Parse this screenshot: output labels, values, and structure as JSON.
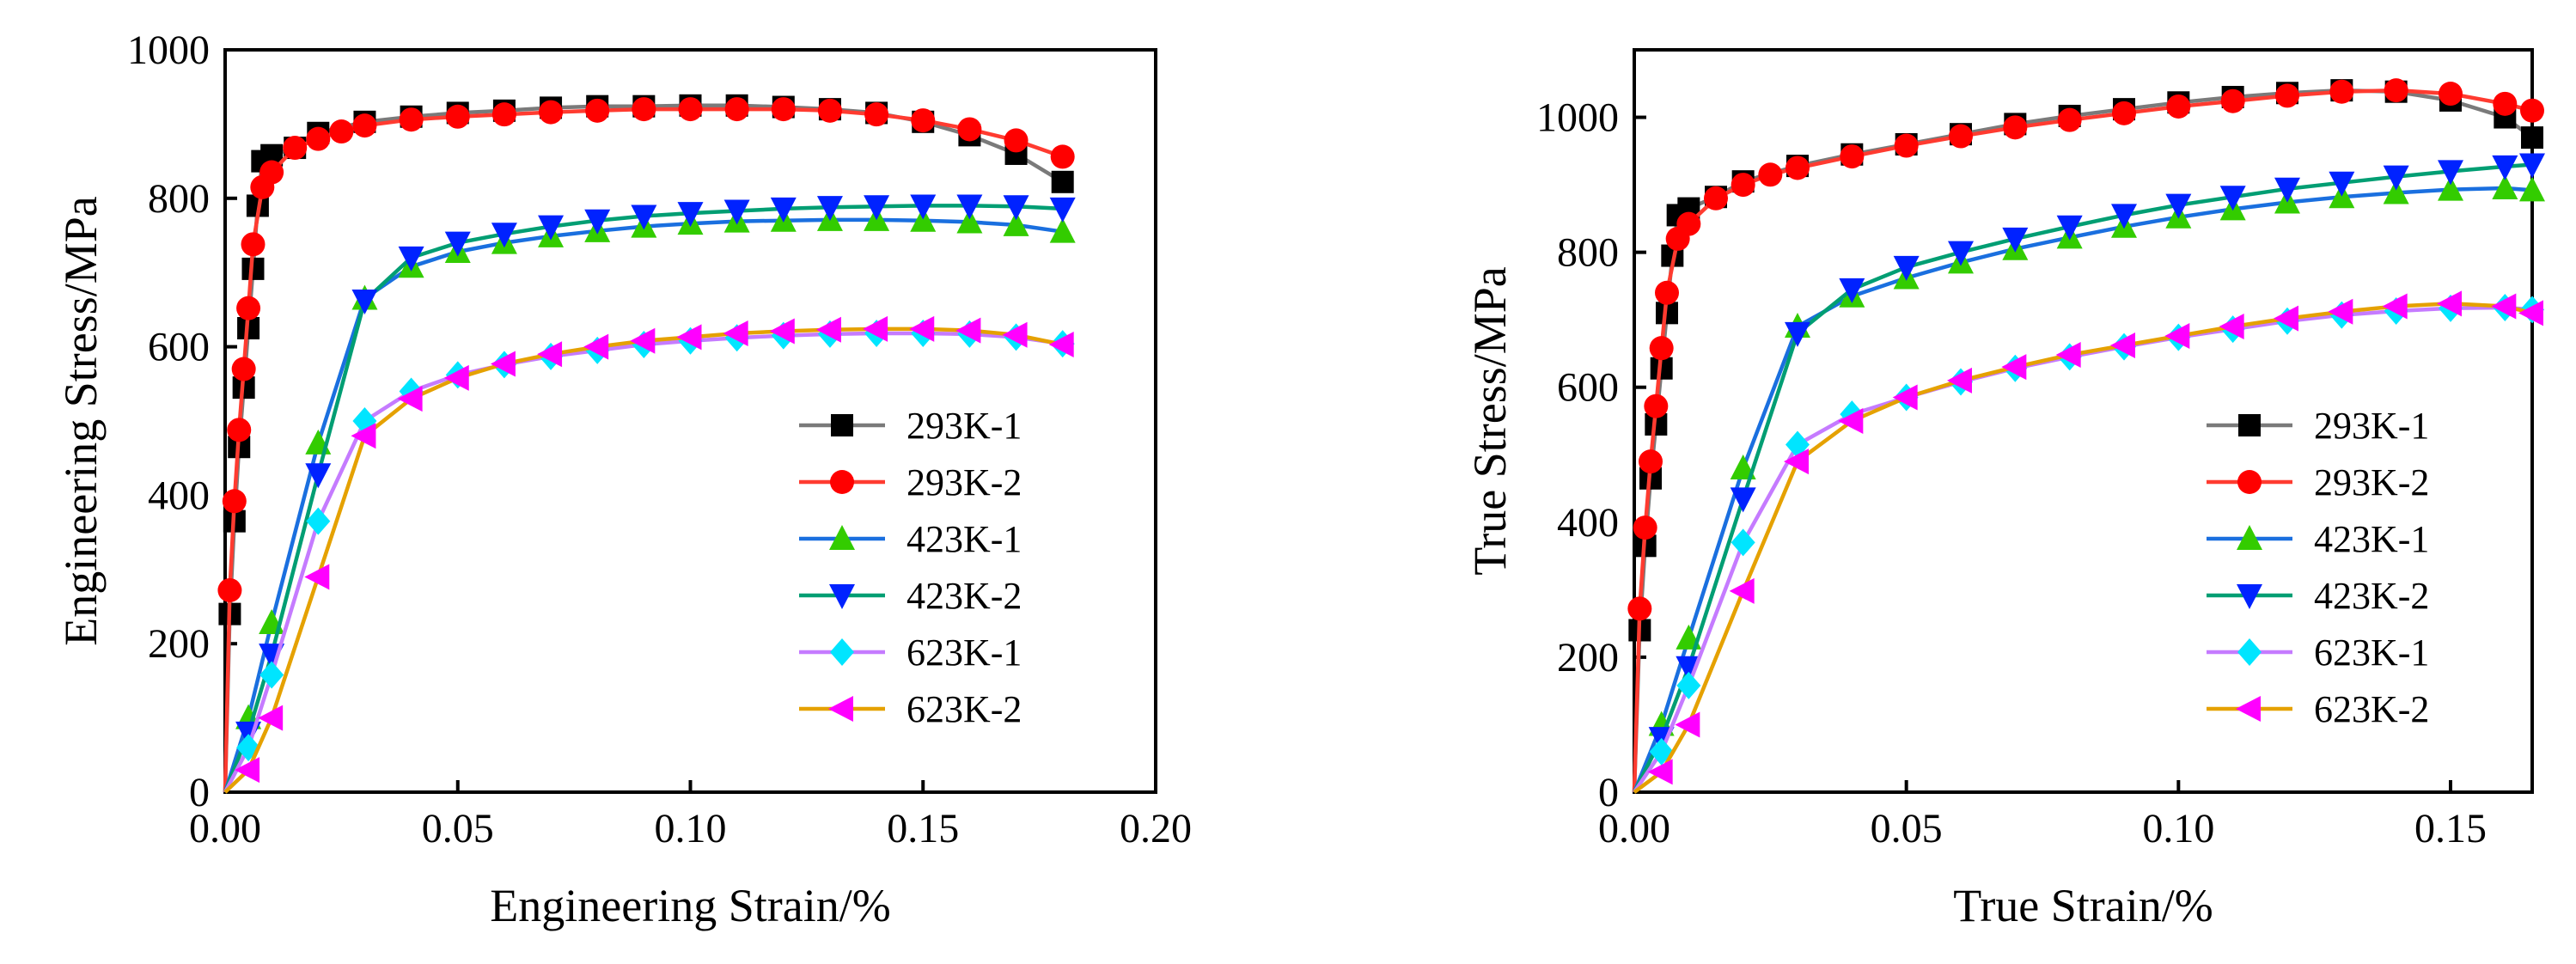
{
  "chart_data": [
    {
      "type": "line",
      "xlabel": "Engineering Strain/%",
      "ylabel": "Engineering Stress/MPa",
      "xlim": [
        0,
        0.2
      ],
      "ylim": [
        0,
        1000
      ],
      "xticks": [
        0,
        0.05,
        0.1,
        0.15,
        0.2
      ],
      "xtick_labels": [
        "0.00",
        "0.05",
        "0.10",
        "0.15",
        "0.20"
      ],
      "yticks": [
        0,
        200,
        400,
        600,
        800,
        1000
      ],
      "ytick_labels": [
        "0",
        "200",
        "400",
        "600",
        "800",
        "1000"
      ],
      "legend_position": "bottom-right",
      "series": [
        {
          "name": "293K-1",
          "color": "#7a7a7a",
          "marker_color": "#000000",
          "marker": "square",
          "x": [
            0,
            0.001,
            0.002,
            0.003,
            0.004,
            0.005,
            0.006,
            0.007,
            0.008,
            0.01,
            0.015,
            0.02,
            0.03,
            0.04,
            0.05,
            0.06,
            0.07,
            0.08,
            0.09,
            0.1,
            0.11,
            0.12,
            0.13,
            0.14,
            0.15,
            0.16,
            0.17,
            0.18
          ],
          "y": [
            0,
            240,
            365,
            465,
            545,
            625,
            705,
            790,
            850,
            858,
            868,
            888,
            903,
            910,
            915,
            918,
            922,
            924,
            924,
            925,
            925,
            923,
            920,
            915,
            903,
            885,
            860,
            822
          ]
        },
        {
          "name": "293K-2",
          "color": "#ff3b30",
          "marker_color": "#ff0000",
          "marker": "circle",
          "x": [
            0,
            0.001,
            0.002,
            0.003,
            0.004,
            0.005,
            0.006,
            0.008,
            0.01,
            0.015,
            0.02,
            0.025,
            0.03,
            0.04,
            0.05,
            0.06,
            0.07,
            0.08,
            0.09,
            0.1,
            0.11,
            0.12,
            0.13,
            0.14,
            0.15,
            0.16,
            0.17,
            0.18
          ],
          "y": [
            0,
            272,
            392,
            488,
            570,
            652,
            738,
            815,
            835,
            868,
            880,
            890,
            898,
            906,
            910,
            913,
            916,
            918,
            920,
            920,
            920,
            920,
            918,
            913,
            905,
            893,
            878,
            856
          ]
        },
        {
          "name": "423K-1",
          "color": "#1a6fdf",
          "marker_color": "#33cc00",
          "marker": "triangle-up",
          "x": [
            0,
            0.005,
            0.01,
            0.02,
            0.03,
            0.04,
            0.05,
            0.06,
            0.07,
            0.08,
            0.09,
            0.1,
            0.11,
            0.12,
            0.13,
            0.14,
            0.15,
            0.16,
            0.17,
            0.18
          ],
          "y": [
            0,
            100,
            228,
            470,
            665,
            708,
            728,
            740,
            749,
            756,
            762,
            766,
            769,
            770,
            771,
            771,
            770,
            768,
            764,
            755
          ]
        },
        {
          "name": "423K-2",
          "color": "#009e73",
          "marker_color": "#0022ff",
          "marker": "triangle-down",
          "x": [
            0,
            0.005,
            0.01,
            0.02,
            0.03,
            0.04,
            0.05,
            0.06,
            0.07,
            0.08,
            0.09,
            0.1,
            0.11,
            0.12,
            0.13,
            0.14,
            0.15,
            0.16,
            0.17,
            0.18
          ],
          "y": [
            0,
            80,
            185,
            428,
            662,
            720,
            740,
            752,
            762,
            770,
            776,
            780,
            783,
            786,
            788,
            789,
            790,
            790,
            789,
            786
          ]
        },
        {
          "name": "623K-1",
          "color": "#c57bff",
          "marker_color": "#00e5ff",
          "marker": "diamond",
          "x": [
            0,
            0.005,
            0.01,
            0.02,
            0.03,
            0.04,
            0.05,
            0.06,
            0.07,
            0.08,
            0.09,
            0.1,
            0.11,
            0.12,
            0.13,
            0.14,
            0.15,
            0.16,
            0.17,
            0.18
          ],
          "y": [
            0,
            60,
            158,
            365,
            500,
            540,
            562,
            576,
            587,
            595,
            603,
            608,
            612,
            615,
            617,
            618,
            618,
            617,
            613,
            604
          ]
        },
        {
          "name": "623K-2",
          "color": "#e5a100",
          "marker_color": "#ff00ff",
          "marker": "triangle-left",
          "x": [
            0,
            0.005,
            0.01,
            0.02,
            0.03,
            0.04,
            0.05,
            0.06,
            0.07,
            0.08,
            0.09,
            0.1,
            0.11,
            0.12,
            0.13,
            0.14,
            0.15,
            0.16,
            0.17,
            0.18
          ],
          "y": [
            0,
            30,
            100,
            290,
            480,
            530,
            558,
            577,
            590,
            600,
            608,
            613,
            618,
            621,
            623,
            624,
            624,
            622,
            616,
            603
          ]
        }
      ]
    },
    {
      "type": "line",
      "xlabel": "True Strain/%",
      "ylabel": "True Stress/MPa",
      "xlim": [
        0,
        0.165
      ],
      "ylim": [
        0,
        1100
      ],
      "xticks": [
        0,
        0.05,
        0.1,
        0.15
      ],
      "xtick_labels": [
        "0.00",
        "0.05",
        "0.10",
        "0.15"
      ],
      "yticks": [
        0,
        200,
        400,
        600,
        800,
        1000
      ],
      "ytick_labels": [
        "0",
        "200",
        "400",
        "600",
        "800",
        "1000"
      ],
      "legend_position": "bottom-right",
      "series": [
        {
          "name": "293K-1",
          "color": "#7a7a7a",
          "marker_color": "#000000",
          "marker": "square",
          "x": [
            0,
            0.001,
            0.002,
            0.003,
            0.004,
            0.005,
            0.006,
            0.007,
            0.008,
            0.01,
            0.015,
            0.02,
            0.03,
            0.04,
            0.05,
            0.06,
            0.07,
            0.08,
            0.09,
            0.1,
            0.11,
            0.12,
            0.13,
            0.14,
            0.15,
            0.16,
            0.165
          ],
          "y": [
            0,
            240,
            365,
            465,
            545,
            628,
            710,
            795,
            855,
            865,
            882,
            905,
            928,
            945,
            960,
            975,
            990,
            1002,
            1012,
            1022,
            1030,
            1036,
            1040,
            1038,
            1025,
            1000,
            970
          ]
        },
        {
          "name": "293K-2",
          "color": "#ff3b30",
          "marker_color": "#ff0000",
          "marker": "circle",
          "x": [
            0,
            0.001,
            0.002,
            0.003,
            0.004,
            0.005,
            0.006,
            0.008,
            0.01,
            0.015,
            0.02,
            0.025,
            0.03,
            0.04,
            0.05,
            0.06,
            0.07,
            0.08,
            0.09,
            0.1,
            0.11,
            0.12,
            0.13,
            0.14,
            0.15,
            0.16,
            0.165
          ],
          "y": [
            0,
            272,
            392,
            490,
            572,
            658,
            740,
            820,
            842,
            880,
            900,
            915,
            925,
            942,
            958,
            972,
            985,
            996,
            1006,
            1016,
            1024,
            1032,
            1038,
            1040,
            1035,
            1020,
            1010
          ]
        },
        {
          "name": "423K-1",
          "color": "#1a6fdf",
          "marker_color": "#33cc00",
          "marker": "triangle-up",
          "x": [
            0,
            0.005,
            0.01,
            0.02,
            0.03,
            0.04,
            0.05,
            0.06,
            0.07,
            0.08,
            0.09,
            0.1,
            0.11,
            0.12,
            0.13,
            0.14,
            0.15,
            0.16,
            0.165
          ],
          "y": [
            0,
            100,
            228,
            480,
            690,
            735,
            762,
            785,
            805,
            822,
            838,
            852,
            864,
            874,
            882,
            888,
            893,
            895,
            892
          ]
        },
        {
          "name": "423K-2",
          "color": "#009e73",
          "marker_color": "#0022ff",
          "marker": "triangle-down",
          "x": [
            0,
            0.005,
            0.01,
            0.02,
            0.03,
            0.04,
            0.05,
            0.06,
            0.07,
            0.08,
            0.09,
            0.1,
            0.11,
            0.12,
            0.13,
            0.14,
            0.15,
            0.16,
            0.165
          ],
          "y": [
            0,
            80,
            185,
            435,
            680,
            745,
            778,
            800,
            820,
            838,
            855,
            870,
            882,
            894,
            903,
            912,
            920,
            927,
            930
          ]
        },
        {
          "name": "623K-1",
          "color": "#c57bff",
          "marker_color": "#00e5ff",
          "marker": "diamond",
          "x": [
            0,
            0.005,
            0.01,
            0.02,
            0.03,
            0.04,
            0.05,
            0.06,
            0.07,
            0.08,
            0.09,
            0.1,
            0.11,
            0.12,
            0.13,
            0.14,
            0.15,
            0.16,
            0.165
          ],
          "y": [
            0,
            60,
            158,
            370,
            515,
            560,
            585,
            608,
            628,
            645,
            660,
            674,
            686,
            698,
            707,
            713,
            717,
            718,
            715
          ]
        },
        {
          "name": "623K-2",
          "color": "#e5a100",
          "marker_color": "#ff00ff",
          "marker": "triangle-left",
          "x": [
            0,
            0.005,
            0.01,
            0.02,
            0.03,
            0.04,
            0.05,
            0.06,
            0.07,
            0.08,
            0.09,
            0.1,
            0.11,
            0.12,
            0.13,
            0.14,
            0.15,
            0.16,
            0.165
          ],
          "y": [
            0,
            30,
            100,
            298,
            490,
            550,
            585,
            610,
            630,
            648,
            662,
            676,
            690,
            702,
            712,
            720,
            724,
            720,
            710
          ]
        }
      ]
    }
  ]
}
